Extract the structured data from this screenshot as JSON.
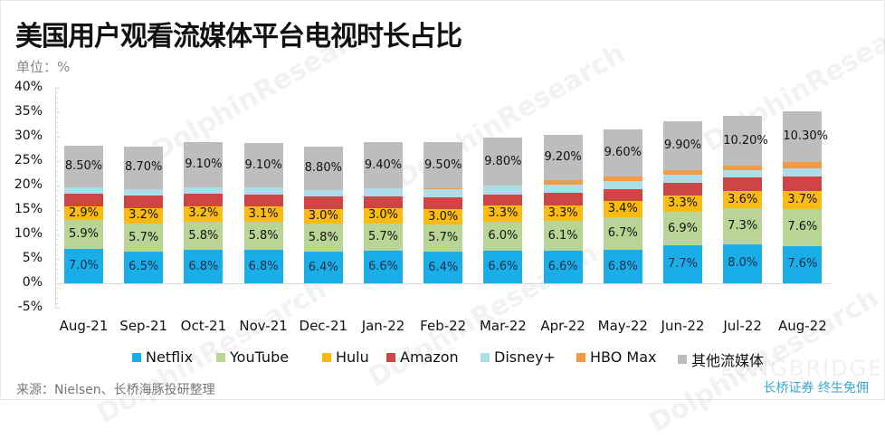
{
  "header": {
    "title": "美国用户观看流媒体平台电视时长占比",
    "unit": "单位：%"
  },
  "footer": {
    "source": "来源：Nielsen、长桥海豚投研整理",
    "brand": "长桥证券 终生免佣"
  },
  "watermark": {
    "text1": "DolphinResearch",
    "text2": "LONGBRIDGE"
  },
  "colors": {
    "Netflix": "#1aaee8",
    "YouTube": "#b9d596",
    "Hulu": "#fbbb12",
    "Amazon": "#cf4545",
    "Disney+": "#acdde8",
    "HBO Max": "#f49a42",
    "其他流媒体": "#bdbdbd"
  },
  "chart_data": {
    "type": "bar",
    "stacked": true,
    "title": "美国用户观看流媒体平台电视时长占比",
    "subtitle": "单位：%",
    "xlabel": "",
    "ylabel": "",
    "ylim": [
      -5,
      40
    ],
    "yticks": [
      "40%",
      "35%",
      "30%",
      "25%",
      "20%",
      "15%",
      "10%",
      "5%",
      "0%",
      "-5%"
    ],
    "legend_position": "bottom",
    "grid": false,
    "categories": [
      "Aug-21",
      "Sep-21",
      "Oct-21",
      "Nov-21",
      "Dec-21",
      "Jan-22",
      "Feb-22",
      "Mar-22",
      "Apr-22",
      "May-22",
      "Jun-22",
      "Jul-22",
      "Aug-22"
    ],
    "series": [
      {
        "name": "Netflix",
        "values": [
          7.0,
          6.5,
          6.8,
          6.8,
          6.4,
          6.6,
          6.4,
          6.6,
          6.6,
          6.8,
          7.7,
          8.0,
          7.6
        ],
        "labeled": true,
        "labels": [
          "7.0%",
          "6.5%",
          "6.8%",
          "6.8%",
          "6.4%",
          "6.6%",
          "6.4%",
          "6.6%",
          "6.6%",
          "6.8%",
          "7.7%",
          "8.0%",
          "7.6%"
        ]
      },
      {
        "name": "YouTube",
        "values": [
          5.9,
          5.7,
          5.8,
          5.8,
          5.8,
          5.7,
          5.7,
          6.0,
          6.1,
          6.7,
          6.9,
          7.3,
          7.6
        ],
        "labeled": true,
        "labels": [
          "5.9%",
          "5.7%",
          "5.8%",
          "5.8%",
          "5.8%",
          "5.7%",
          "5.7%",
          "6.0%",
          "6.1%",
          "6.7%",
          "6.9%",
          "7.3%",
          "7.6%"
        ]
      },
      {
        "name": "Hulu",
        "values": [
          2.9,
          3.2,
          3.2,
          3.1,
          3.0,
          3.0,
          3.0,
          3.3,
          3.3,
          3.4,
          3.3,
          3.6,
          3.7
        ],
        "labeled": true,
        "labels": [
          "2.9%",
          "3.2%",
          "3.2%",
          "3.1%",
          "3.0%",
          "3.0%",
          "3.0%",
          "3.3%",
          "3.3%",
          "3.4%",
          "3.3%",
          "3.6%",
          "3.7%"
        ]
      },
      {
        "name": "Amazon",
        "values": [
          2.5,
          2.5,
          2.5,
          2.5,
          2.5,
          2.5,
          2.5,
          2.3,
          2.6,
          2.4,
          2.7,
          2.7,
          2.9
        ],
        "labeled": false
      },
      {
        "name": "Disney+",
        "values": [
          1.4,
          1.4,
          1.4,
          1.4,
          1.4,
          1.6,
          1.6,
          1.8,
          1.6,
          1.6,
          1.7,
          1.5,
          1.8
        ],
        "labeled": false
      },
      {
        "name": "HBO Max",
        "values": [
          0,
          0,
          0,
          0,
          0,
          0,
          0.2,
          0,
          0.9,
          0.9,
          0.9,
          0.9,
          1.2
        ],
        "labeled": false
      },
      {
        "name": "其他流媒体",
        "values": [
          8.5,
          8.7,
          9.1,
          9.1,
          8.8,
          9.4,
          9.5,
          9.8,
          9.2,
          9.6,
          9.9,
          10.2,
          10.3
        ],
        "labeled": true,
        "labels": [
          "8.50%",
          "8.70%",
          "9.10%",
          "9.10%",
          "8.80%",
          "9.40%",
          "9.50%",
          "9.80%",
          "9.20%",
          "9.60%",
          "9.90%",
          "10.20%",
          "10.30%"
        ]
      }
    ],
    "legend": [
      "Netflix",
      "YouTube",
      "Hulu",
      "Amazon",
      "Disney+",
      "HBO Max",
      "其他流媒体"
    ]
  }
}
